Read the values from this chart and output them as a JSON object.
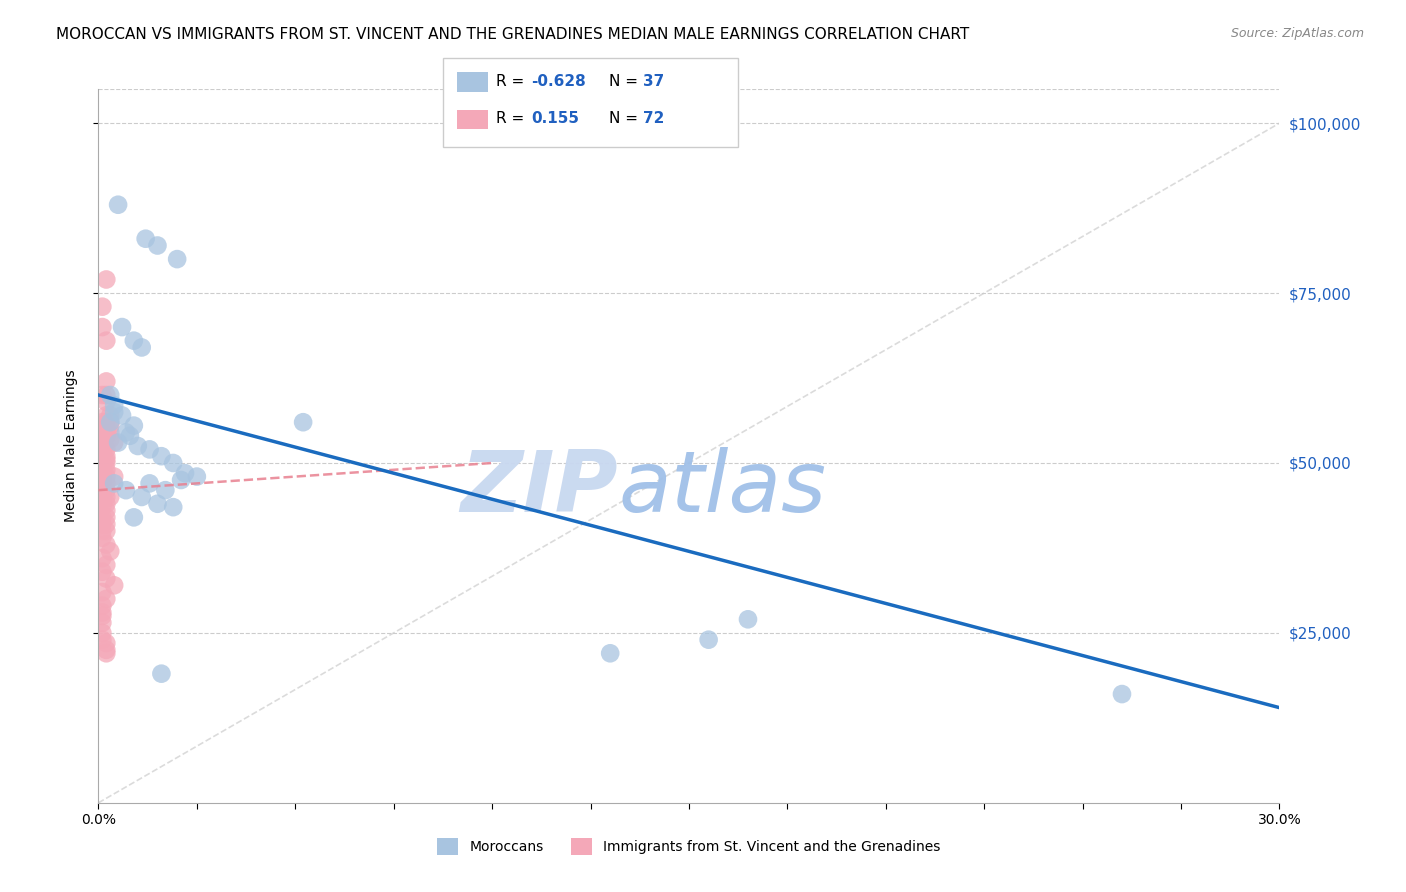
{
  "title": "MOROCCAN VS IMMIGRANTS FROM ST. VINCENT AND THE GRENADINES MEDIAN MALE EARNINGS CORRELATION CHART",
  "source": "Source: ZipAtlas.com",
  "ylabel": "Median Male Earnings",
  "xlim": [
    0.0,
    0.3
  ],
  "ylim": [
    0,
    105000
  ],
  "xtick_labels_show": [
    "0.0%",
    "30.0%"
  ],
  "xtick_vals_show": [
    0.0,
    0.3
  ],
  "xtick_minor_vals": [
    0.025,
    0.05,
    0.075,
    0.1,
    0.125,
    0.15,
    0.175,
    0.2,
    0.225,
    0.25,
    0.275
  ],
  "ytick_labels": [
    "$25,000",
    "$50,000",
    "$75,000",
    "$100,000"
  ],
  "ytick_vals": [
    25000,
    50000,
    75000,
    100000
  ],
  "blue_color": "#a8c4e0",
  "pink_color": "#f4a8b8",
  "blue_line_color": "#1a6bbf",
  "pink_line_color": "#e88090",
  "dashed_line_color": "#cccccc",
  "watermark": "ZIPatlas",
  "watermark_zip_color": "#c8d8f0",
  "watermark_atlas_color": "#8ab0d8",
  "title_fontsize": 11,
  "axis_label_fontsize": 10,
  "tick_fontsize": 10,
  "blue_dots": [
    [
      0.005,
      88000
    ],
    [
      0.012,
      83000
    ],
    [
      0.015,
      82000
    ],
    [
      0.02,
      80000
    ],
    [
      0.006,
      70000
    ],
    [
      0.009,
      68000
    ],
    [
      0.011,
      67000
    ],
    [
      0.003,
      60000
    ],
    [
      0.004,
      58500
    ],
    [
      0.006,
      57000
    ],
    [
      0.009,
      55500
    ],
    [
      0.007,
      54500
    ],
    [
      0.008,
      54000
    ],
    [
      0.005,
      53000
    ],
    [
      0.01,
      52500
    ],
    [
      0.013,
      52000
    ],
    [
      0.016,
      51000
    ],
    [
      0.019,
      50000
    ],
    [
      0.022,
      48500
    ],
    [
      0.025,
      48000
    ],
    [
      0.004,
      47000
    ],
    [
      0.007,
      46000
    ],
    [
      0.011,
      45000
    ],
    [
      0.015,
      44000
    ],
    [
      0.019,
      43500
    ],
    [
      0.021,
      47500
    ],
    [
      0.009,
      42000
    ],
    [
      0.013,
      47000
    ],
    [
      0.017,
      46000
    ],
    [
      0.004,
      57500
    ],
    [
      0.003,
      56000
    ],
    [
      0.052,
      56000
    ],
    [
      0.13,
      22000
    ],
    [
      0.155,
      24000
    ],
    [
      0.165,
      27000
    ],
    [
      0.26,
      16000
    ],
    [
      0.016,
      19000
    ]
  ],
  "pink_dots": [
    [
      0.002,
      77000
    ],
    [
      0.001,
      73000
    ],
    [
      0.001,
      70000
    ],
    [
      0.002,
      68000
    ],
    [
      0.002,
      62000
    ],
    [
      0.001,
      60000
    ],
    [
      0.002,
      59000
    ],
    [
      0.002,
      57000
    ],
    [
      0.003,
      57000
    ],
    [
      0.001,
      56000
    ],
    [
      0.002,
      56000
    ],
    [
      0.003,
      55500
    ],
    [
      0.001,
      55000
    ],
    [
      0.002,
      55000
    ],
    [
      0.003,
      54500
    ],
    [
      0.001,
      54000
    ],
    [
      0.002,
      54000
    ],
    [
      0.003,
      53500
    ],
    [
      0.001,
      53000
    ],
    [
      0.002,
      53000
    ],
    [
      0.001,
      52000
    ],
    [
      0.002,
      52000
    ],
    [
      0.001,
      51500
    ],
    [
      0.002,
      51000
    ],
    [
      0.002,
      50500
    ],
    [
      0.001,
      50000
    ],
    [
      0.002,
      50000
    ],
    [
      0.001,
      49500
    ],
    [
      0.002,
      49000
    ],
    [
      0.001,
      48500
    ],
    [
      0.002,
      48000
    ],
    [
      0.001,
      47500
    ],
    [
      0.002,
      47000
    ],
    [
      0.001,
      46500
    ],
    [
      0.002,
      46000
    ],
    [
      0.001,
      45500
    ],
    [
      0.002,
      45000
    ],
    [
      0.001,
      44500
    ],
    [
      0.002,
      44000
    ],
    [
      0.001,
      43500
    ],
    [
      0.002,
      43000
    ],
    [
      0.001,
      42000
    ],
    [
      0.002,
      42000
    ],
    [
      0.001,
      41000
    ],
    [
      0.002,
      41000
    ],
    [
      0.001,
      40000
    ],
    [
      0.002,
      40000
    ],
    [
      0.001,
      39000
    ],
    [
      0.002,
      38000
    ],
    [
      0.003,
      37000
    ],
    [
      0.001,
      36000
    ],
    [
      0.002,
      35000
    ],
    [
      0.001,
      34000
    ],
    [
      0.002,
      33000
    ],
    [
      0.004,
      32000
    ],
    [
      0.001,
      31000
    ],
    [
      0.002,
      30000
    ],
    [
      0.001,
      29000
    ],
    [
      0.001,
      28000
    ],
    [
      0.001,
      27500
    ],
    [
      0.001,
      26500
    ],
    [
      0.001,
      25000
    ],
    [
      0.001,
      24000
    ],
    [
      0.002,
      23500
    ],
    [
      0.002,
      22500
    ],
    [
      0.002,
      22000
    ],
    [
      0.003,
      56000
    ],
    [
      0.004,
      53000
    ],
    [
      0.004,
      48000
    ],
    [
      0.002,
      60000
    ],
    [
      0.003,
      45000
    ]
  ],
  "blue_line_x": [
    0.0,
    0.3
  ],
  "blue_line_y": [
    60000,
    14000
  ],
  "pink_line_x": [
    0.0,
    0.1
  ],
  "pink_line_y": [
    46000,
    50000
  ]
}
